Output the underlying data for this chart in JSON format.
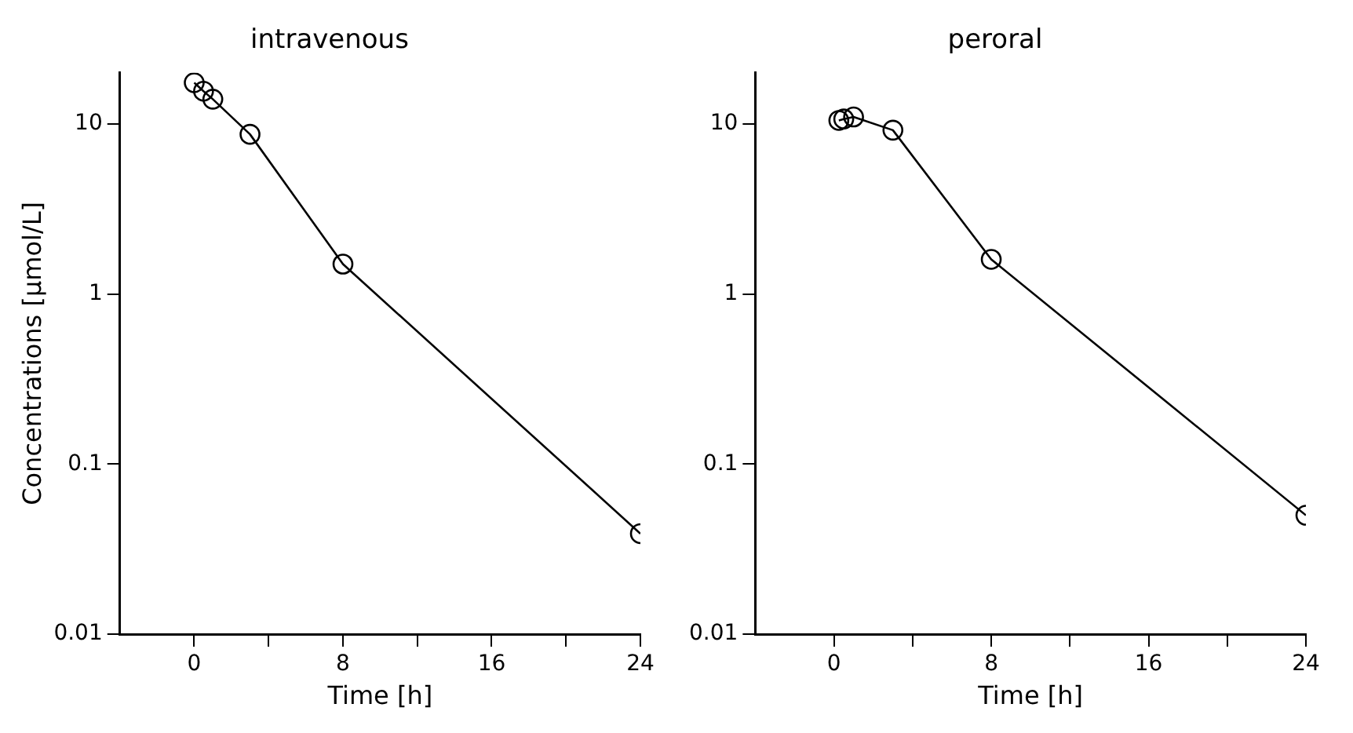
{
  "chart_data": [
    {
      "type": "line",
      "title": "intravenous",
      "xlabel": "Time [h]",
      "ylabel": "Concentrations [μmol/L]",
      "log": true,
      "marker": "circle",
      "line_style": "solid",
      "series": [
        {
          "color": "#000000",
          "x": [
            0,
            0.5,
            1,
            3,
            8,
            24
          ],
          "values": [
            17.5,
            15.6,
            14,
            8.7,
            1.5,
            0.039
          ]
        }
      ],
      "xlim": [
        -4,
        24
      ],
      "xticks": [
        0,
        {
          "value": 4,
          "label": null
        },
        8,
        {
          "value": 12,
          "label": null
        },
        16,
        {
          "value": 20,
          "label": null
        },
        24
      ],
      "ylim": [
        0.01,
        20
      ],
      "yticks": [
        0.01,
        0.1,
        1,
        10
      ]
    },
    {
      "type": "line",
      "title": "peroral",
      "xlabel": "Time [h]",
      "log": true,
      "marker": "circle",
      "line_style": "solid",
      "series": [
        {
          "color": "#000000",
          "x": [
            0.25,
            0.5,
            1,
            3,
            8,
            24
          ],
          "values": [
            10.5,
            10.7,
            11,
            9.2,
            1.6,
            0.05
          ]
        }
      ],
      "xlim": [
        -4,
        24
      ],
      "xticks": [
        0,
        {
          "value": 4,
          "label": null
        },
        8,
        {
          "value": 12,
          "label": null
        },
        16,
        {
          "value": 20,
          "label": null
        },
        24
      ],
      "ylim": [
        0.01,
        20
      ],
      "yticks": [
        0.01,
        0.1,
        1,
        10
      ]
    }
  ]
}
